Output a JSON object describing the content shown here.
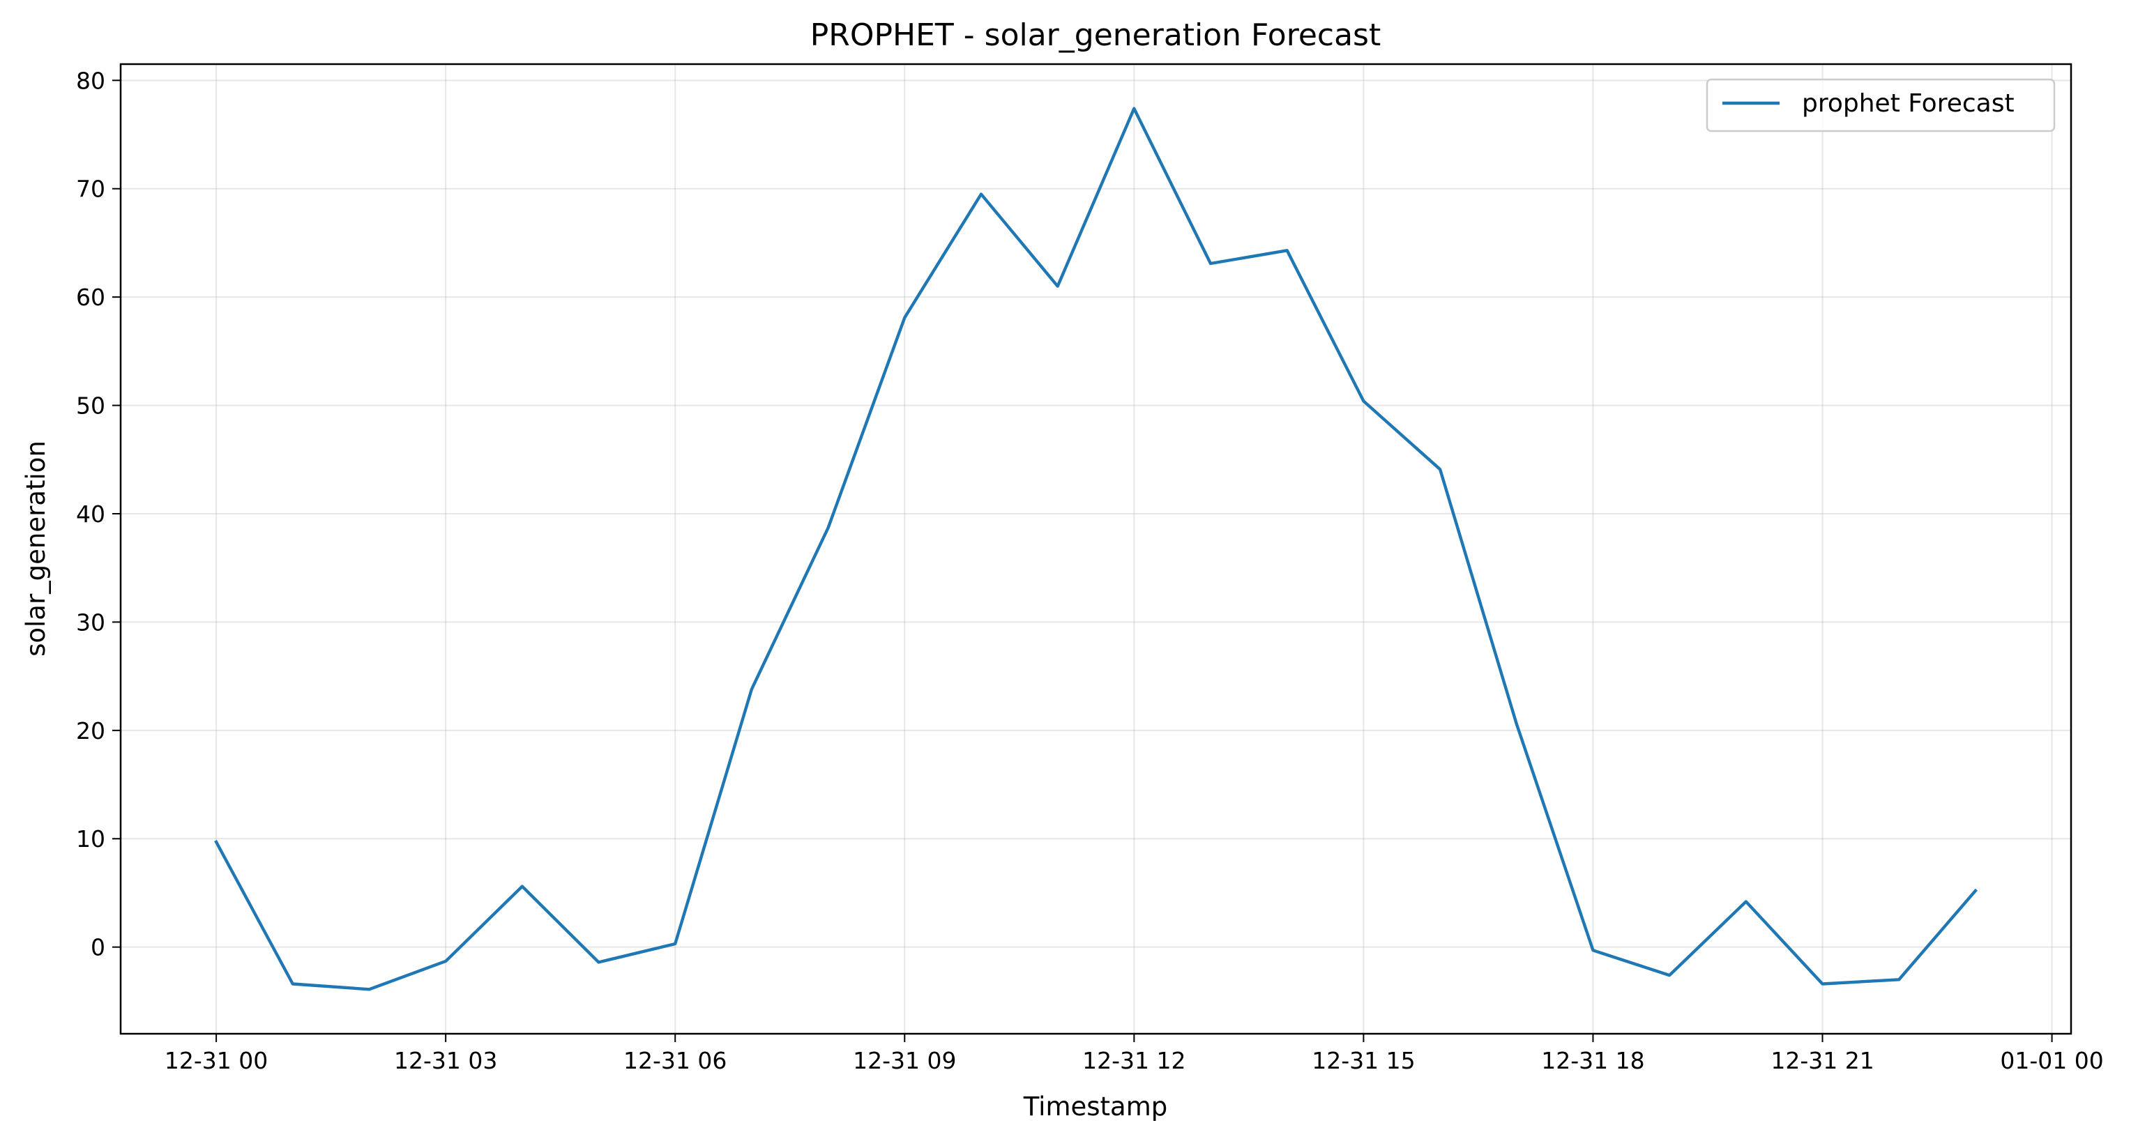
{
  "chart_data": {
    "type": "line",
    "title": "PROPHET - solar_generation Forecast",
    "xlabel": "Timestamp",
    "ylabel": "solar_generation",
    "xlim": [
      "12-30 22:45",
      "01-01 00:15"
    ],
    "ylim": [
      -8,
      81.5
    ],
    "grid": true,
    "legend_position": "top-right",
    "x_ticks": [
      {
        "value": "12-31 00:00",
        "label": "12-31 00"
      },
      {
        "value": "12-31 03:00",
        "label": "12-31 03"
      },
      {
        "value": "12-31 06:00",
        "label": "12-31 06"
      },
      {
        "value": "12-31 09:00",
        "label": "12-31 09"
      },
      {
        "value": "12-31 12:00",
        "label": "12-31 12"
      },
      {
        "value": "12-31 15:00",
        "label": "12-31 15"
      },
      {
        "value": "12-31 18:00",
        "label": "12-31 18"
      },
      {
        "value": "12-31 21:00",
        "label": "12-31 21"
      },
      {
        "value": "01-01 00:00",
        "label": "01-01 00"
      }
    ],
    "y_ticks": [
      {
        "value": 0,
        "label": "0"
      },
      {
        "value": 10,
        "label": "10"
      },
      {
        "value": 20,
        "label": "20"
      },
      {
        "value": 30,
        "label": "30"
      },
      {
        "value": 40,
        "label": "40"
      },
      {
        "value": 50,
        "label": "50"
      },
      {
        "value": 60,
        "label": "60"
      },
      {
        "value": 70,
        "label": "70"
      },
      {
        "value": 80,
        "label": "80"
      }
    ],
    "series": [
      {
        "name": "prophet Forecast",
        "color": "#1f77b4",
        "x": [
          "12-31 00:00",
          "12-31 01:00",
          "12-31 02:00",
          "12-31 03:00",
          "12-31 04:00",
          "12-31 05:00",
          "12-31 06:00",
          "12-31 07:00",
          "12-31 08:00",
          "12-31 09:00",
          "12-31 10:00",
          "12-31 11:00",
          "12-31 12:00",
          "12-31 13:00",
          "12-31 14:00",
          "12-31 15:00",
          "12-31 16:00",
          "12-31 17:00",
          "12-31 18:00",
          "12-31 19:00",
          "12-31 20:00",
          "12-31 21:00",
          "12-31 22:00",
          "12-31 23:00"
        ],
        "y": [
          9.7,
          -3.4,
          -3.9,
          -1.3,
          5.6,
          -1.4,
          0.3,
          23.8,
          38.7,
          58.1,
          69.5,
          61.0,
          77.4,
          63.1,
          64.3,
          50.4,
          44.1,
          20.6,
          -0.3,
          -2.6,
          4.2,
          -3.4,
          -3.0,
          5.2
        ]
      }
    ]
  }
}
